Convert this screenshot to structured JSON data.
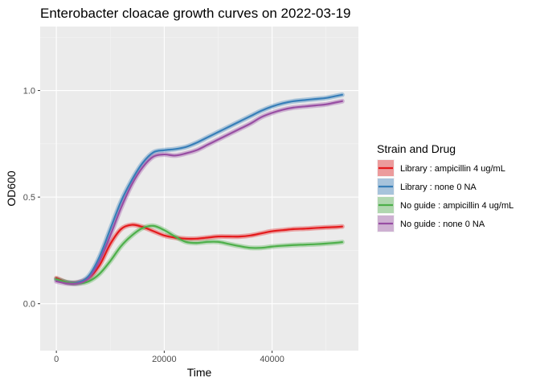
{
  "chart_data": {
    "type": "line",
    "title": "Enterobacter cloacae growth curves on 2022-03-19",
    "xlabel": "Time",
    "ylabel": "OD600",
    "xlim": [
      -3000,
      56000
    ],
    "ylim": [
      -0.22,
      1.3
    ],
    "x_ticks": [
      0,
      20000,
      40000
    ],
    "x_tick_labels": [
      "0",
      "20000",
      "40000"
    ],
    "y_ticks": [
      0.0,
      0.5,
      1.0
    ],
    "y_tick_labels": [
      "0.0",
      "0.5",
      "1.0"
    ],
    "grid": true,
    "legend": {
      "title": "Strain and Drug",
      "position": "right"
    },
    "series": [
      {
        "name": "Library : ampicillin 4 ug/mL",
        "color": "#e41a1c",
        "x": [
          0,
          2000,
          4000,
          6000,
          8000,
          10000,
          12000,
          14000,
          16000,
          18000,
          20000,
          22000,
          24000,
          26000,
          28000,
          30000,
          32000,
          34000,
          36000,
          38000,
          40000,
          42000,
          44000,
          46000,
          48000,
          50000,
          52000,
          53000
        ],
        "y": [
          0.12,
          0.1,
          0.1,
          0.12,
          0.18,
          0.28,
          0.35,
          0.37,
          0.36,
          0.34,
          0.32,
          0.31,
          0.305,
          0.305,
          0.31,
          0.315,
          0.315,
          0.315,
          0.32,
          0.33,
          0.34,
          0.345,
          0.35,
          0.352,
          0.355,
          0.358,
          0.36,
          0.362
        ]
      },
      {
        "name": "Library : none 0 NA",
        "color": "#377eb8",
        "x": [
          0,
          2000,
          4000,
          6000,
          8000,
          10000,
          12000,
          14000,
          16000,
          18000,
          20000,
          22000,
          24000,
          26000,
          28000,
          30000,
          32000,
          34000,
          36000,
          38000,
          40000,
          42000,
          44000,
          46000,
          48000,
          50000,
          52000,
          53000
        ],
        "y": [
          0.115,
          0.1,
          0.1,
          0.13,
          0.22,
          0.35,
          0.48,
          0.58,
          0.66,
          0.71,
          0.72,
          0.725,
          0.735,
          0.755,
          0.78,
          0.805,
          0.83,
          0.855,
          0.88,
          0.905,
          0.925,
          0.94,
          0.95,
          0.955,
          0.96,
          0.965,
          0.975,
          0.98
        ]
      },
      {
        "name": "No guide : ampicillin 4 ug/mL",
        "color": "#4daf4a",
        "x": [
          0,
          2000,
          4000,
          6000,
          8000,
          10000,
          12000,
          14000,
          16000,
          18000,
          20000,
          22000,
          24000,
          26000,
          28000,
          30000,
          32000,
          34000,
          36000,
          38000,
          40000,
          42000,
          44000,
          46000,
          48000,
          50000,
          52000,
          53000
        ],
        "y": [
          0.115,
          0.1,
          0.095,
          0.105,
          0.14,
          0.2,
          0.27,
          0.32,
          0.355,
          0.365,
          0.345,
          0.315,
          0.29,
          0.285,
          0.29,
          0.29,
          0.28,
          0.27,
          0.262,
          0.262,
          0.268,
          0.272,
          0.275,
          0.277,
          0.279,
          0.282,
          0.286,
          0.289
        ]
      },
      {
        "name": "No guide : none 0 NA",
        "color": "#984ea3",
        "x": [
          0,
          2000,
          4000,
          6000,
          8000,
          10000,
          12000,
          14000,
          16000,
          18000,
          20000,
          22000,
          24000,
          26000,
          28000,
          30000,
          32000,
          34000,
          36000,
          38000,
          40000,
          42000,
          44000,
          46000,
          48000,
          50000,
          52000,
          53000
        ],
        "y": [
          0.105,
          0.095,
          0.095,
          0.12,
          0.2,
          0.32,
          0.45,
          0.56,
          0.64,
          0.69,
          0.7,
          0.695,
          0.705,
          0.72,
          0.745,
          0.77,
          0.795,
          0.82,
          0.845,
          0.875,
          0.895,
          0.91,
          0.92,
          0.925,
          0.93,
          0.935,
          0.945,
          0.95
        ]
      }
    ]
  }
}
